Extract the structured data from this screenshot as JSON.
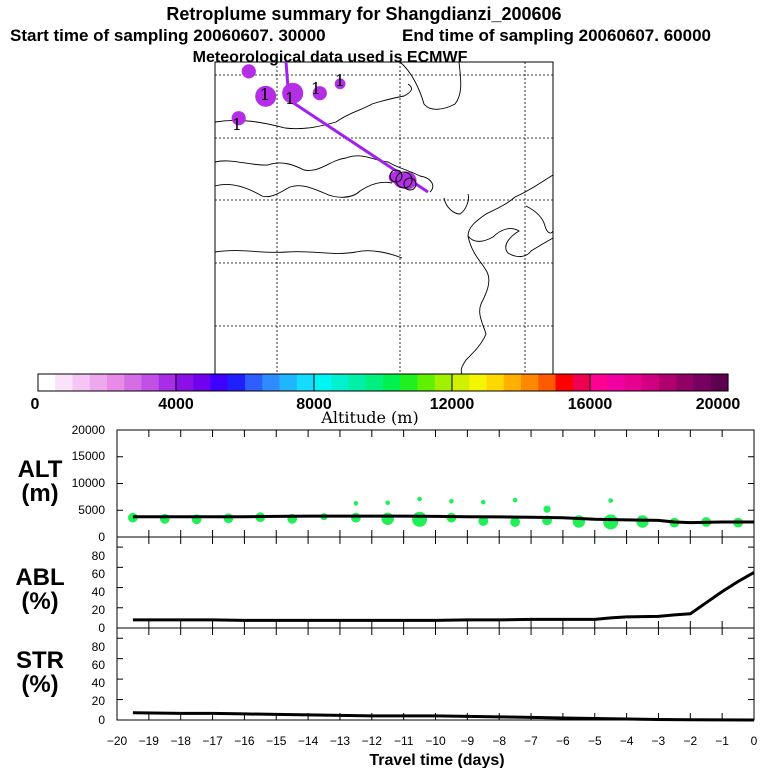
{
  "header": {
    "title": "Retroplume summary for Shangdianzi_200606",
    "start_label": "Start time of sampling 20060607. 30000",
    "end_label": "End time of sampling 20060607. 60000",
    "met_label": "Meteorological data used is ECMWF"
  },
  "colorbar": {
    "label": "Altitude (m)",
    "ticks": [
      "0",
      "4000",
      "8000",
      "12000",
      "16000",
      "20000"
    ],
    "min": 0,
    "max": 20000,
    "colors": [
      "#ffffff",
      "#fbe2fb",
      "#f5c6f5",
      "#eea8ee",
      "#e98ae9",
      "#d56de7",
      "#c24fe6",
      "#a52ee6",
      "#8b10e6",
      "#7000ee",
      "#3f00ff",
      "#2020ff",
      "#2f5eff",
      "#2f8cff",
      "#1fb6ff",
      "#15dcff",
      "#00f5f5",
      "#00f0d0",
      "#00f0a8",
      "#00f080",
      "#00f050",
      "#20f020",
      "#60f000",
      "#a0f000",
      "#d0f000",
      "#f5f500",
      "#ffd800",
      "#ffb000",
      "#ff8800",
      "#ff5a00",
      "#ff0000",
      "#f00050",
      "#ff0090",
      "#f000a0",
      "#e80090",
      "#d00080",
      "#b00070",
      "#900066",
      "#750060",
      "#600050"
    ]
  },
  "map": {
    "flags": [
      "1",
      "1",
      "1",
      "1",
      "1"
    ],
    "markers": [
      {
        "lon_frac": 0.1,
        "lat_frac": 0.03,
        "size": 3,
        "color": "#b42ee6"
      },
      {
        "lon_frac": 0.07,
        "lat_frac": 0.18,
        "size": 3,
        "color": "#b42ee6"
      },
      {
        "lon_frac": 0.15,
        "lat_frac": 0.11,
        "size": 5,
        "color": "#b42ee6"
      },
      {
        "lon_frac": 0.23,
        "lat_frac": 0.1,
        "size": 5,
        "color": "#b42ee6"
      },
      {
        "lon_frac": 0.31,
        "lat_frac": 0.1,
        "size": 3,
        "color": "#b42ee6"
      },
      {
        "lon_frac": 0.37,
        "lat_frac": 0.07,
        "size": 2,
        "color": "#b42ee6"
      },
      {
        "lon_frac": 0.53,
        "lat_frac": 0.37,
        "size": 2,
        "color": "#b42ee6"
      },
      {
        "lon_frac": 0.55,
        "lat_frac": 0.38,
        "size": 3,
        "color": "#b42ee6"
      },
      {
        "lon_frac": 0.57,
        "lat_frac": 0.38,
        "size": 4,
        "color": "#b42ee6"
      }
    ]
  },
  "chart_data": [
    {
      "type": "scatter",
      "panel": "ALT (m)",
      "ylabel_line1": "ALT",
      "ylabel_line2": "(m)",
      "ylim": [
        0,
        20000
      ],
      "yticks": [
        "0",
        "5000",
        "10000",
        "15000",
        "20000"
      ],
      "line_x": [
        -19.5,
        -18,
        -17,
        -16,
        -15,
        -14,
        -13,
        -12,
        -11,
        -10,
        -9,
        -8,
        -7,
        -6,
        -5,
        -4,
        -3,
        -2.5,
        -2,
        -1,
        0
      ],
      "line_y": [
        3800,
        3800,
        3800,
        3800,
        3850,
        3900,
        3900,
        3900,
        3900,
        3850,
        3800,
        3750,
        3700,
        3600,
        3300,
        3200,
        3100,
        2800,
        2700,
        2800,
        2800
      ],
      "points": [
        {
          "x": -19.5,
          "y": 3600,
          "size": 3
        },
        {
          "x": -18.5,
          "y": 3400,
          "size": 3
        },
        {
          "x": -17.5,
          "y": 3300,
          "size": 3
        },
        {
          "x": -16.5,
          "y": 3500,
          "size": 3
        },
        {
          "x": -15.5,
          "y": 3700,
          "size": 3
        },
        {
          "x": -14.5,
          "y": 3400,
          "size": 3
        },
        {
          "x": -13.5,
          "y": 3800,
          "size": 2
        },
        {
          "x": -12.5,
          "y": 3600,
          "size": 3
        },
        {
          "x": -12.5,
          "y": 6300,
          "size": 1
        },
        {
          "x": -11.5,
          "y": 3400,
          "size": 4
        },
        {
          "x": -11.5,
          "y": 6400,
          "size": 1
        },
        {
          "x": -10.5,
          "y": 3300,
          "size": 5
        },
        {
          "x": -10.5,
          "y": 7100,
          "size": 1
        },
        {
          "x": -9.5,
          "y": 3600,
          "size": 3
        },
        {
          "x": -9.5,
          "y": 6700,
          "size": 1
        },
        {
          "x": -8.5,
          "y": 3000,
          "size": 3
        },
        {
          "x": -8.5,
          "y": 6500,
          "size": 1
        },
        {
          "x": -7.5,
          "y": 2800,
          "size": 3
        },
        {
          "x": -7.5,
          "y": 6900,
          "size": 1
        },
        {
          "x": -6.5,
          "y": 3100,
          "size": 3
        },
        {
          "x": -6.5,
          "y": 5200,
          "size": 2
        },
        {
          "x": -5.5,
          "y": 2900,
          "size": 4
        },
        {
          "x": -4.5,
          "y": 2800,
          "size": 5
        },
        {
          "x": -4.5,
          "y": 6800,
          "size": 1
        },
        {
          "x": -3.5,
          "y": 2900,
          "size": 4
        },
        {
          "x": -2.5,
          "y": 2700,
          "size": 3
        },
        {
          "x": -1.5,
          "y": 2800,
          "size": 3
        },
        {
          "x": -0.5,
          "y": 2700,
          "size": 3
        }
      ]
    },
    {
      "type": "line",
      "panel": "ABL (%)",
      "ylabel_line1": "ABL",
      "ylabel_line2": "(%)",
      "ylim": [
        0,
        90
      ],
      "yticks": [
        "0",
        "20",
        "40",
        "60",
        "80"
      ],
      "x": [
        -19.5,
        -18,
        -17,
        -16,
        -15,
        -14,
        -13,
        -12,
        -11,
        -10,
        -9,
        -8,
        -7,
        -6,
        -5,
        -4.5,
        -4,
        -3,
        -2.5,
        -2,
        -1.5,
        -1,
        -0.5,
        0
      ],
      "values": [
        8,
        8,
        8,
        7.5,
        7.5,
        7.5,
        7.5,
        7.5,
        7.5,
        7.5,
        8,
        8,
        8.5,
        8.5,
        8.5,
        10,
        11,
        11.5,
        13,
        14,
        25,
        36,
        46,
        55
      ]
    },
    {
      "type": "line",
      "panel": "STR (%)",
      "ylabel_line1": "STR",
      "ylabel_line2": "(%)",
      "ylim": [
        0,
        90
      ],
      "yticks": [
        "0",
        "20",
        "40",
        "60",
        "80"
      ],
      "x": [
        -19.5,
        -18,
        -17,
        -16,
        -15,
        -14,
        -13,
        -12,
        -11,
        -10,
        -9,
        -8,
        -7,
        -6,
        -5,
        -4,
        -3,
        -2,
        -1,
        0
      ],
      "values": [
        7,
        6.5,
        6.5,
        6,
        5.5,
        5,
        4.5,
        4,
        4,
        4,
        3.5,
        3,
        2.5,
        2,
        1.5,
        1,
        0.5,
        0.3,
        0.1,
        0
      ]
    }
  ],
  "xaxis": {
    "title": "Travel time (days)",
    "ticks": [
      "−20",
      "−19",
      "−18",
      "−17",
      "−16",
      "−15",
      "−14",
      "−13",
      "−12",
      "−11",
      "−10",
      "−9",
      "−8",
      "−7",
      "−6",
      "−5",
      "−4",
      "−3",
      "−2",
      "−1",
      "0"
    ],
    "min": -20,
    "max": 0
  }
}
